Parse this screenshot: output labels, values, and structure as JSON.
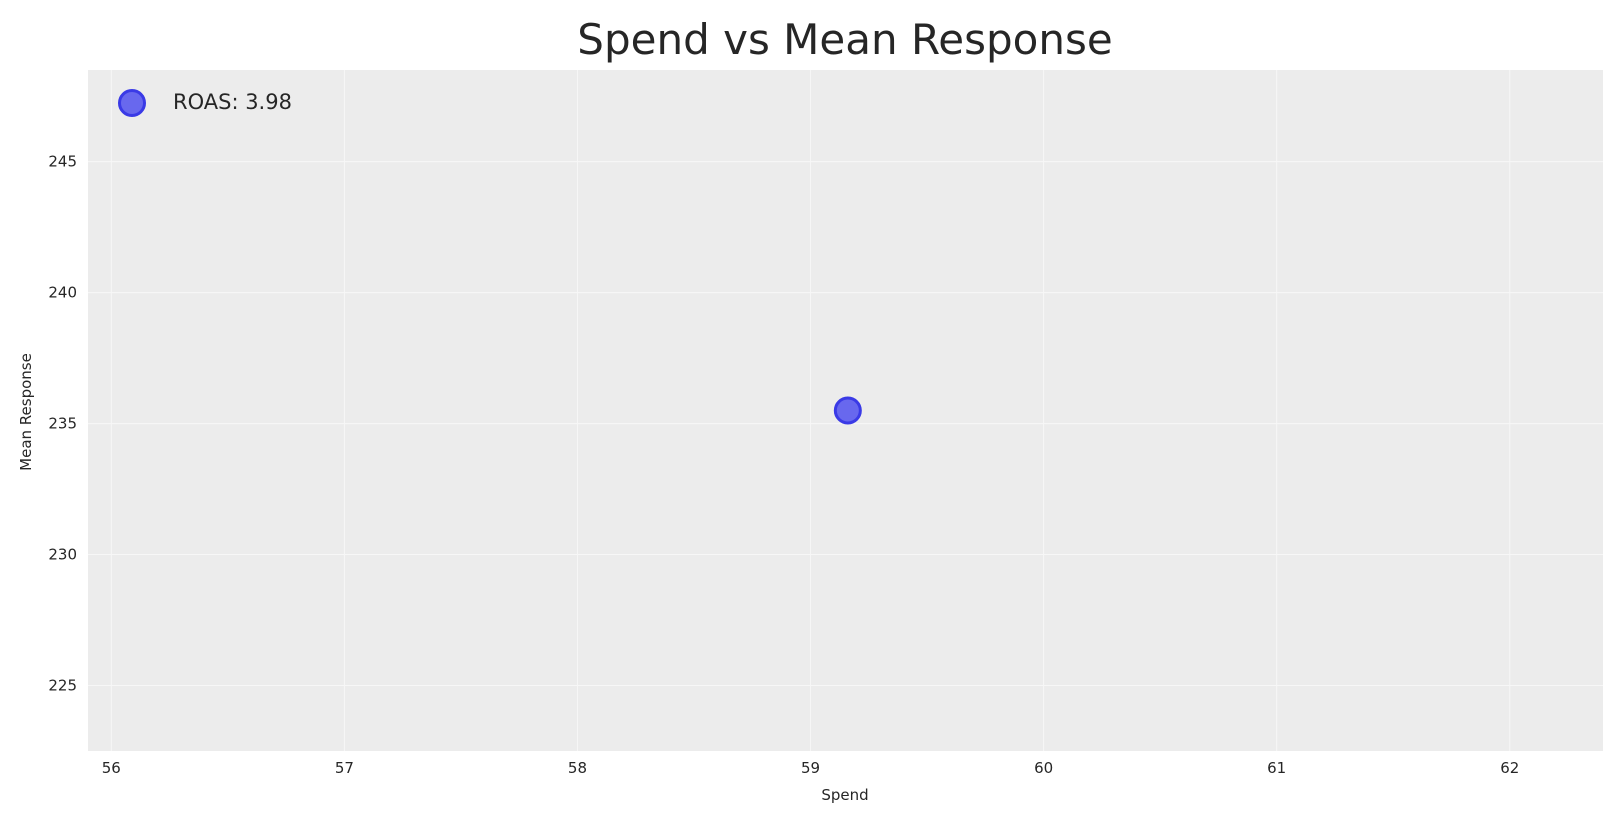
{
  "chart_data": {
    "type": "scatter",
    "title": "Spend vs Mean Response",
    "xlabel": "Spend",
    "ylabel": "Mean Response",
    "xlim": [
      55.9,
      62.4
    ],
    "ylim": [
      222.5,
      248.5
    ],
    "xticks": [
      56,
      57,
      58,
      59,
      60,
      61,
      62
    ],
    "yticks": [
      225,
      230,
      235,
      240,
      245
    ],
    "grid": true,
    "legend_position": "top-left",
    "series": [
      {
        "name": "ROAS: 3.98",
        "x": [
          59.16
        ],
        "y": [
          235.5
        ],
        "color": "#5555ee",
        "edge_color": "#3a3ae6"
      }
    ],
    "colors": {
      "plot_background": "#ececec",
      "grid": "#f7f7f7",
      "text": "#262626"
    }
  }
}
